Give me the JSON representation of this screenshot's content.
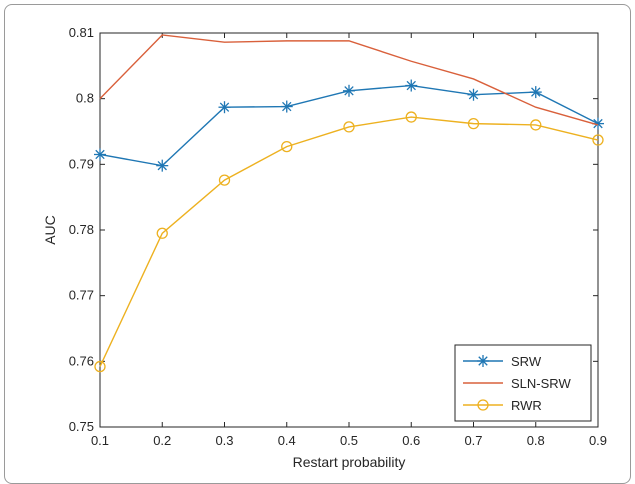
{
  "chart_data": {
    "type": "line",
    "title": "",
    "xlabel": "Restart probability",
    "ylabel": "AUC",
    "xlim": [
      0.1,
      0.9
    ],
    "ylim": [
      0.75,
      0.81
    ],
    "x": [
      0.1,
      0.2,
      0.3,
      0.4,
      0.5,
      0.6,
      0.7,
      0.8,
      0.9
    ],
    "x_ticks": [
      "0.1",
      "0.2",
      "0.3",
      "0.4",
      "0.5",
      "0.6",
      "0.7",
      "0.8",
      "0.9"
    ],
    "y_ticks": [
      "0.75",
      "0.76",
      "0.77",
      "0.78",
      "0.79",
      "0.8",
      "0.81"
    ],
    "grid": false,
    "legend_position": "bottom-right",
    "series": [
      {
        "name": "SRW",
        "color": "#1f77b4",
        "marker": "asterisk",
        "values": [
          0.7915,
          0.7898,
          0.7987,
          0.7988,
          0.8012,
          0.802,
          0.8006,
          0.801,
          0.7962
        ]
      },
      {
        "name": "SLN-SRW",
        "color": "#d9603b",
        "marker": "none",
        "values": [
          0.8,
          0.8097,
          0.8086,
          0.8088,
          0.8088,
          0.8057,
          0.803,
          0.7987,
          0.796
        ]
      },
      {
        "name": "RWR",
        "color": "#edb120",
        "marker": "circle",
        "values": [
          0.7592,
          0.7795,
          0.7876,
          0.7927,
          0.7957,
          0.7972,
          0.7962,
          0.796,
          0.7937
        ]
      }
    ]
  }
}
